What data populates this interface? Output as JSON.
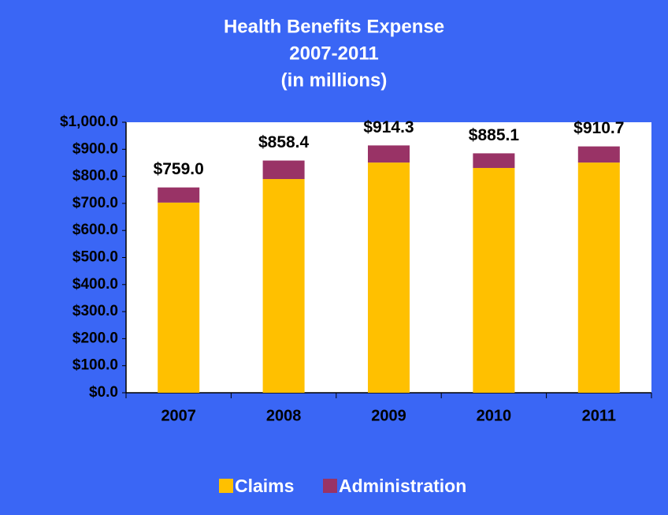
{
  "chart_data": {
    "type": "stacked_bar",
    "title": [
      "Health Benefits Expense",
      "2007-2011",
      "(in millions)"
    ],
    "categories": [
      "2007",
      "2008",
      "2009",
      "2010",
      "2011"
    ],
    "series": [
      {
        "name": "Claims",
        "color": "#ffc000",
        "values": [
          703,
          790,
          851,
          831,
          851
        ]
      },
      {
        "name": "Administration",
        "color": "#993366",
        "values": [
          56,
          68.4,
          63.3,
          54.1,
          59.7
        ]
      }
    ],
    "totals": [
      759.0,
      858.4,
      914.3,
      885.1,
      910.7
    ],
    "total_labels": [
      "$759.0",
      "$858.4",
      "$914.3",
      "$885.1",
      "$910.7"
    ],
    "ylim": [
      0,
      1000
    ],
    "yticks": [
      {
        "value": 0,
        "label": "$0.0"
      },
      {
        "value": 100,
        "label": "$100.0"
      },
      {
        "value": 200,
        "label": "$200.0"
      },
      {
        "value": 300,
        "label": "$300.0"
      },
      {
        "value": 400,
        "label": "$400.0"
      },
      {
        "value": 500,
        "label": "$500.0"
      },
      {
        "value": 600,
        "label": "$600.0"
      },
      {
        "value": 700,
        "label": "$700.0"
      },
      {
        "value": 800,
        "label": "$800.0"
      },
      {
        "value": 900,
        "label": "$900.0"
      },
      {
        "value": 1000,
        "label": "$1,000.0"
      }
    ],
    "legend": "bottom"
  }
}
